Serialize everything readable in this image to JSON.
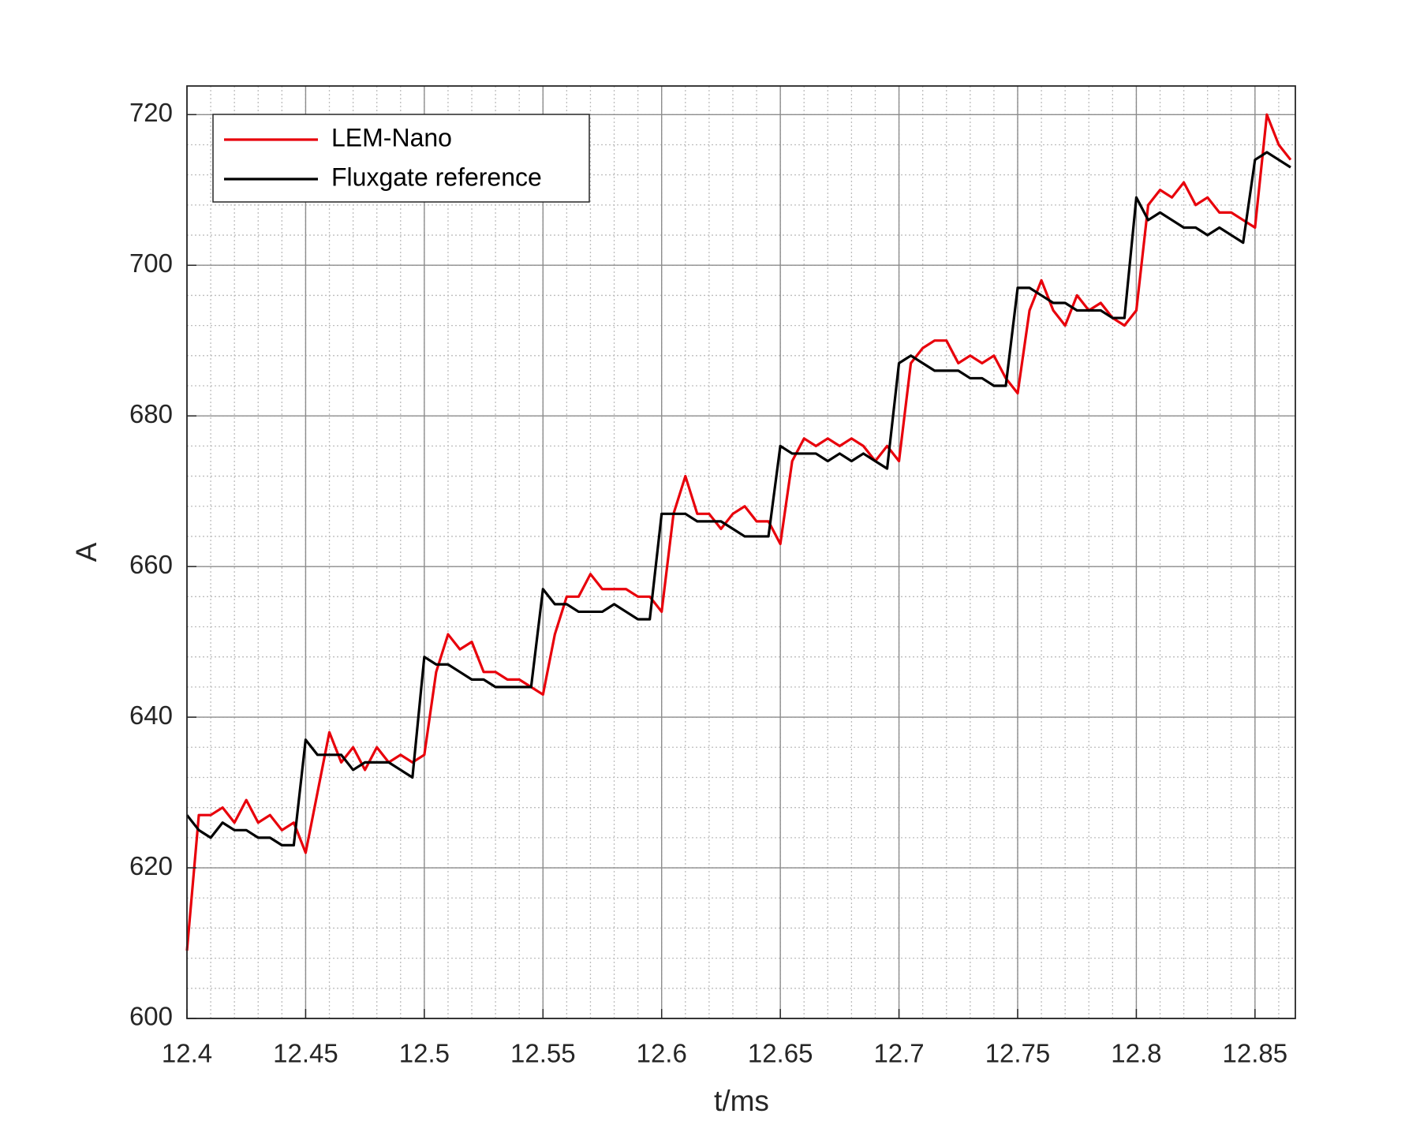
{
  "chart_data": {
    "type": "line",
    "x_label": "t/ms",
    "y_label": "A",
    "x": [
      12.4,
      12.405,
      12.41,
      12.415,
      12.42,
      12.425,
      12.43,
      12.435,
      12.44,
      12.445,
      12.45,
      12.455,
      12.46,
      12.465,
      12.47,
      12.475,
      12.48,
      12.485,
      12.49,
      12.495,
      12.5,
      12.505,
      12.51,
      12.515,
      12.52,
      12.525,
      12.53,
      12.535,
      12.54,
      12.545,
      12.55,
      12.555,
      12.56,
      12.565,
      12.57,
      12.575,
      12.58,
      12.585,
      12.59,
      12.595,
      12.6,
      12.605,
      12.61,
      12.615,
      12.62,
      12.625,
      12.63,
      12.635,
      12.64,
      12.645,
      12.65,
      12.655,
      12.66,
      12.665,
      12.67,
      12.675,
      12.68,
      12.685,
      12.69,
      12.695,
      12.7,
      12.705,
      12.71,
      12.715,
      12.72,
      12.725,
      12.73,
      12.735,
      12.74,
      12.745,
      12.75,
      12.755,
      12.76,
      12.765,
      12.77,
      12.775,
      12.78,
      12.785,
      12.79,
      12.795,
      12.8,
      12.805,
      12.81,
      12.815,
      12.82,
      12.825,
      12.83,
      12.835,
      12.84,
      12.845,
      12.85,
      12.855,
      12.86,
      12.865
    ],
    "series": [
      {
        "name": "LEM-Nano",
        "color": "#e8000b",
        "values": [
          609,
          627,
          627,
          628,
          626,
          629,
          626,
          627,
          625,
          626,
          622,
          630,
          638,
          634,
          636,
          633,
          636,
          634,
          635,
          634,
          635,
          646,
          651,
          649,
          650,
          646,
          646,
          645,
          645,
          644,
          643,
          651,
          656,
          656,
          659,
          657,
          657,
          657,
          656,
          656,
          654,
          667,
          672,
          667,
          667,
          665,
          667,
          668,
          666,
          666,
          663,
          674,
          677,
          676,
          677,
          676,
          677,
          676,
          674,
          676,
          674,
          687,
          689,
          690,
          690,
          687,
          688,
          687,
          688,
          685,
          683,
          694,
          698,
          694,
          692,
          696,
          694,
          695,
          693,
          692,
          694,
          708,
          710,
          709,
          711,
          708,
          709,
          707,
          707,
          706,
          705,
          720,
          716,
          714
        ]
      },
      {
        "name": "Fluxgate reference",
        "color": "#000000",
        "values": [
          627,
          625,
          624,
          626,
          625,
          625,
          624,
          624,
          623,
          623,
          637,
          635,
          635,
          635,
          633,
          634,
          634,
          634,
          633,
          632,
          648,
          647,
          647,
          646,
          645,
          645,
          644,
          644,
          644,
          644,
          657,
          655,
          655,
          654,
          654,
          654,
          655,
          654,
          653,
          653,
          667,
          667,
          667,
          666,
          666,
          666,
          665,
          664,
          664,
          664,
          676,
          675,
          675,
          675,
          674,
          675,
          674,
          675,
          674,
          673,
          687,
          688,
          687,
          686,
          686,
          686,
          685,
          685,
          684,
          684,
          697,
          697,
          696,
          695,
          695,
          694,
          694,
          694,
          693,
          693,
          709,
          706,
          707,
          706,
          705,
          705,
          704,
          705,
          704,
          703,
          714,
          715,
          714,
          713
        ]
      }
    ],
    "xlim": [
      12.4,
      12.867
    ],
    "ylim": [
      600,
      723.8
    ],
    "xticks": [
      12.4,
      12.45,
      12.5,
      12.55,
      12.6,
      12.65,
      12.7,
      12.75,
      12.8,
      12.85
    ],
    "yticks": [
      600,
      620,
      640,
      660,
      680,
      700,
      720
    ],
    "grid": true,
    "minor_grid": true,
    "legend": "upper left"
  }
}
